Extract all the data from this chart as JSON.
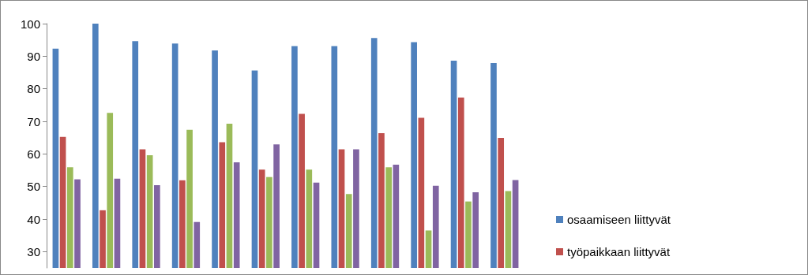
{
  "chart_data": {
    "type": "bar",
    "categories": [
      null,
      null,
      null,
      null,
      null,
      null,
      null,
      null,
      null,
      null,
      null,
      null
    ],
    "series": [
      {
        "name": "osaamiseen liittyvät",
        "color": "#4f81bd",
        "values": [
          92.3,
          100,
          94.6,
          93.9,
          91.8,
          85.6,
          93.1,
          93.1,
          95.6,
          94.3,
          88.6,
          87.9
        ]
      },
      {
        "name": "työpaikkaan liittyvät",
        "color": "#c0504d",
        "values": [
          65.2,
          42.7,
          61.4,
          51.9,
          63.6,
          55.2,
          72.3,
          61.4,
          66.4,
          71.1,
          77.3,
          64.9
        ]
      },
      {
        "color": "#9bbb59",
        "values": [
          55.9,
          72.6,
          59.6,
          67.4,
          69.3,
          52.9,
          55.2,
          47.7,
          55.9,
          36.5,
          45.4,
          48.6
        ]
      },
      {
        "color": "#8064a2",
        "values": [
          52.2,
          52.4,
          50.4,
          39.1,
          57.4,
          62.9,
          51.2,
          61.4,
          56.7,
          50.2,
          48.2,
          52.0
        ]
      }
    ],
    "ylim": [
      25,
      100
    ],
    "yticks": [
      30,
      40,
      50,
      60,
      70,
      80,
      90,
      100
    ],
    "grid": false,
    "legend": "right"
  }
}
